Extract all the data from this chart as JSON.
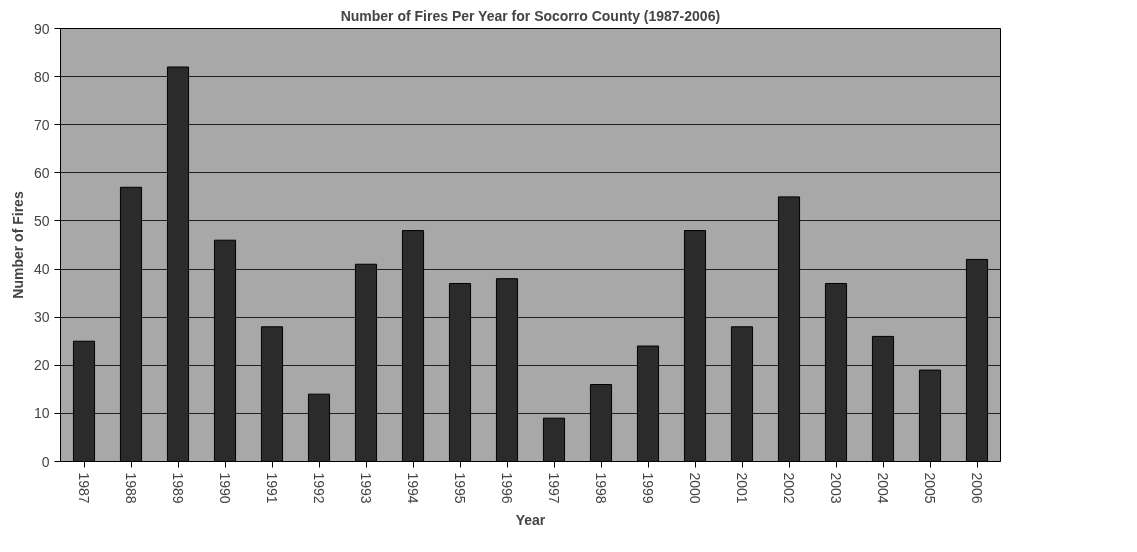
{
  "chart_data": {
    "type": "bar",
    "title": "Number of Fires Per Year for Socorro County (1987-2006)",
    "xlabel": "Year",
    "ylabel": "Number of Fires",
    "categories": [
      "1987",
      "1988",
      "1989",
      "1990",
      "1991",
      "1992",
      "1993",
      "1994",
      "1995",
      "1996",
      "1997",
      "1998",
      "1999",
      "2000",
      "2001",
      "2002",
      "2003",
      "2004",
      "2005",
      "2006"
    ],
    "values": [
      25,
      57,
      82,
      46,
      28,
      14,
      41,
      48,
      37,
      38,
      9,
      16,
      24,
      48,
      28,
      55,
      37,
      26,
      19,
      42
    ],
    "color": "#2b2b2b",
    "ylim": [
      0,
      90
    ],
    "yticks": [
      0,
      10,
      20,
      30,
      40,
      50,
      60,
      70,
      80,
      90
    ],
    "grid": "y"
  }
}
